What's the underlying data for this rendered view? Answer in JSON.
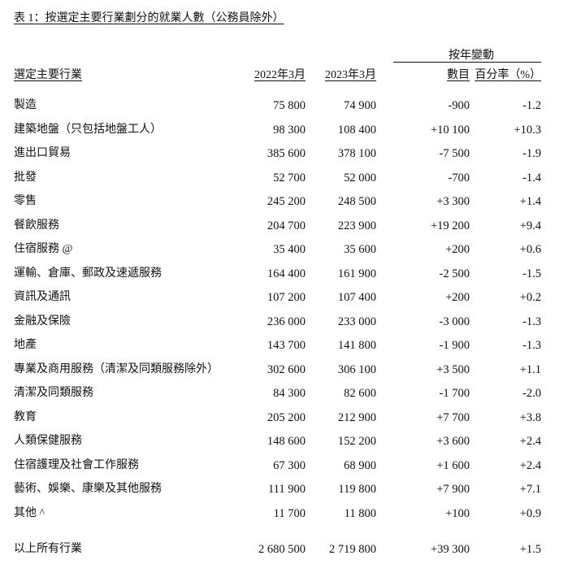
{
  "title": "表 1：按選定主要行業劃分的就業人數（公務員除外）",
  "headers": {
    "industry": "選定主要行業",
    "col_2022": "2022年3月",
    "col_2023": "2023年3月",
    "change_group": "按年變動",
    "change_number": "數目",
    "change_percent": "百分率（%）"
  },
  "rows": [
    {
      "industry": "製造",
      "y2022": "75 800",
      "y2023": "74 900",
      "change": "-900",
      "pct": "-1.2"
    },
    {
      "industry": "建築地盤（只包括地盤工人）",
      "y2022": "98 300",
      "y2023": "108 400",
      "change": "+10 100",
      "pct": "+10.3"
    },
    {
      "industry": "進出口貿易",
      "y2022": "385 600",
      "y2023": "378 100",
      "change": "-7 500",
      "pct": "-1.9"
    },
    {
      "industry": "批發",
      "y2022": "52 700",
      "y2023": "52 000",
      "change": "-700",
      "pct": "-1.4"
    },
    {
      "industry": "零售",
      "y2022": "245 200",
      "y2023": "248 500",
      "change": "+3 300",
      "pct": "+1.4"
    },
    {
      "industry": "餐飲服務",
      "y2022": "204 700",
      "y2023": "223 900",
      "change": "+19 200",
      "pct": "+9.4"
    },
    {
      "industry": "住宿服務 @",
      "y2022": "35 400",
      "y2023": "35 600",
      "change": "+200",
      "pct": "+0.6"
    },
    {
      "industry": "運輸、倉庫、郵政及速遞服務",
      "y2022": "164 400",
      "y2023": "161 900",
      "change": "-2 500",
      "pct": "-1.5"
    },
    {
      "industry": "資訊及通訊",
      "y2022": "107 200",
      "y2023": "107 400",
      "change": "+200",
      "pct": "+0.2"
    },
    {
      "industry": "金融及保險",
      "y2022": "236 000",
      "y2023": "233 000",
      "change": "-3 000",
      "pct": "-1.3"
    },
    {
      "industry": "地產",
      "y2022": "143 700",
      "y2023": "141 800",
      "change": "-1 900",
      "pct": "-1.3"
    },
    {
      "industry": "專業及商用服務（清潔及同類服務除外）",
      "y2022": "302 600",
      "y2023": "306 100",
      "change": "+3 500",
      "pct": "+1.1"
    },
    {
      "industry": "清潔及同類服務",
      "y2022": "84 300",
      "y2023": "82 600",
      "change": "-1 700",
      "pct": "-2.0"
    },
    {
      "industry": "教育",
      "y2022": "205 200",
      "y2023": "212 900",
      "change": "+7 700",
      "pct": "+3.8"
    },
    {
      "industry": "人類保健服務",
      "y2022": "148 600",
      "y2023": "152 200",
      "change": "+3 600",
      "pct": "+2.4"
    },
    {
      "industry": "住宿護理及社會工作服務",
      "y2022": "67 300",
      "y2023": "68 900",
      "change": "+1 600",
      "pct": "+2.4"
    },
    {
      "industry": "藝術、娛樂、康樂及其他服務",
      "y2022": "111 900",
      "y2023": "119 800",
      "change": "+7 900",
      "pct": "+7.1"
    },
    {
      "industry": "其他 ^",
      "y2022": "11 700",
      "y2023": "11 800",
      "change": "+100",
      "pct": "+0.9"
    }
  ],
  "total": {
    "industry": "以上所有行業",
    "y2022": "2 680 500",
    "y2023": "2 719 800",
    "change": "+39 300",
    "pct": "+1.5"
  }
}
